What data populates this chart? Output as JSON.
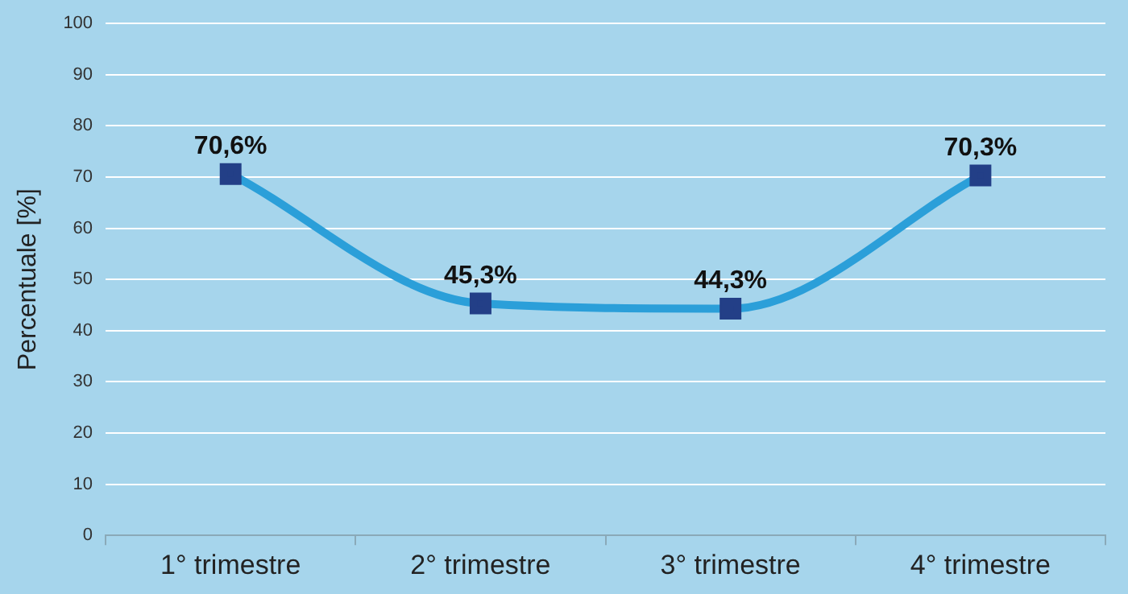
{
  "chart_data": {
    "type": "line",
    "ylabel": "Percentuale [%]",
    "categories": [
      "1° trimestre",
      "2° trimestre",
      "3° trimestre",
      "4° trimestre"
    ],
    "series": [
      {
        "color": "#2b9fd9",
        "values": [
          70.6,
          45.3,
          44.3,
          70.3
        ],
        "value_labels": [
          "70,6%",
          "45,3%",
          "44,3%",
          "70,3%"
        ]
      }
    ],
    "ylim": [
      0,
      100
    ],
    "yticks": [
      0,
      10,
      20,
      30,
      40,
      50,
      60,
      70,
      80,
      90,
      100
    ],
    "grid": "y",
    "legend": false,
    "marker": "square"
  }
}
